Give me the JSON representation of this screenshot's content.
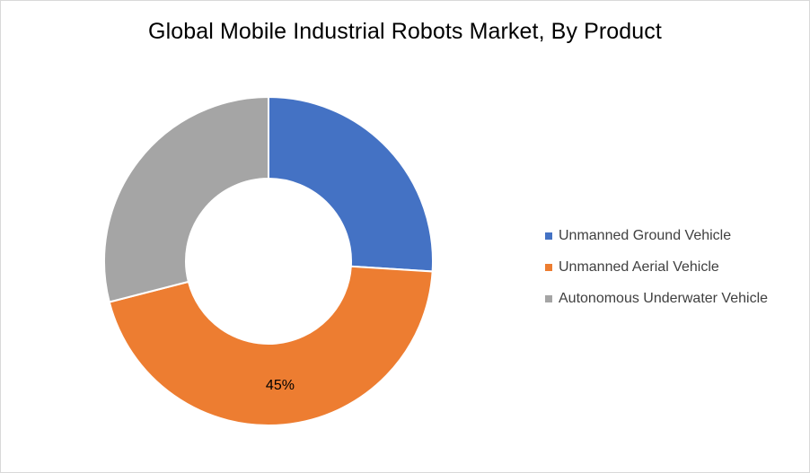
{
  "chart_data": {
    "type": "pie",
    "variant": "donut",
    "title": "Global Mobile Industrial Robots Market, By Product",
    "categories": [
      "Unmanned Ground Vehicle",
      "Unmanned Aerial Vehicle",
      "Autonomous Underwater Vehicle"
    ],
    "values": [
      26,
      45,
      29
    ],
    "colors": [
      "#4472C4",
      "#ED7D31",
      "#A5A5A5"
    ],
    "data_labels": [
      "",
      "45%",
      ""
    ],
    "legend_position": "right"
  }
}
